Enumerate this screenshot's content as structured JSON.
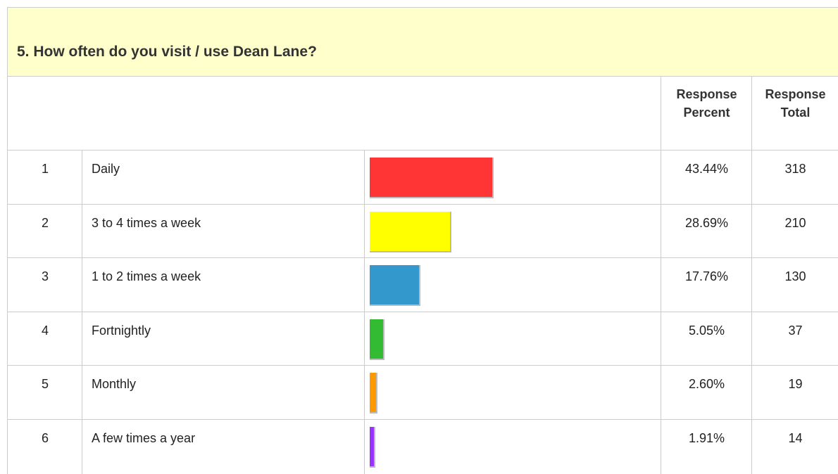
{
  "title": "5. How often do you visit / use Dean Lane?",
  "table": {
    "headers": [
      "Response Percent",
      "Response Total"
    ],
    "rows": [
      {
        "rank": 1,
        "answer": "Daily",
        "percent": 43.44,
        "percent_label": "43.44%",
        "total": 318,
        "color": "#ff3535"
      },
      {
        "rank": 2,
        "answer": "3 to 4 times a week",
        "percent": 28.69,
        "percent_label": "28.69%",
        "total": 210,
        "color": "#ffff00"
      },
      {
        "rank": 3,
        "answer": "1 to 2 times a week",
        "percent": 17.76,
        "percent_label": "17.76%",
        "total": 130,
        "color": "#3399cc"
      },
      {
        "rank": 4,
        "answer": "Fortnightly",
        "percent": 5.05,
        "percent_label": "5.05%",
        "total": 37,
        "color": "#33bb33"
      },
      {
        "rank": 5,
        "answer": "Monthly",
        "percent": 2.6,
        "percent_label": "2.60%",
        "total": 19,
        "color": "#ff9900"
      },
      {
        "rank": 6,
        "answer": "A few times a year",
        "percent": 1.91,
        "percent_label": "1.91%",
        "total": 14,
        "color": "#9933ff"
      }
    ]
  }
}
